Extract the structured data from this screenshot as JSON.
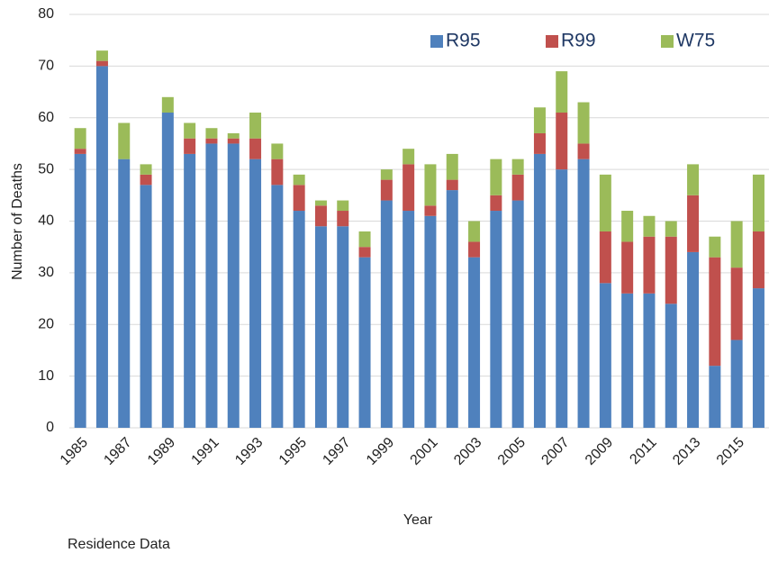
{
  "chart_data": {
    "type": "stacked_bar",
    "x_label": "Year",
    "y_label": "Number of Deaths",
    "caption": "Residence Data",
    "categories": [
      "1985",
      null,
      "1987",
      null,
      "1989",
      null,
      "1991",
      null,
      "1993",
      null,
      "1995",
      null,
      "1997",
      null,
      "1999",
      null,
      "2001",
      null,
      "2003",
      null,
      "2005",
      null,
      "2007",
      null,
      "2009",
      null,
      "2011",
      null,
      "2013",
      null,
      "2015",
      null
    ],
    "series": [
      {
        "name": "R95",
        "color": "#4f81bd",
        "values": [
          53,
          70,
          52,
          47,
          61,
          53,
          55,
          55,
          52,
          47,
          42,
          39,
          39,
          33,
          44,
          42,
          41,
          46,
          33,
          42,
          44,
          53,
          50,
          52,
          28,
          26,
          26,
          24,
          34,
          12,
          17,
          27
        ]
      },
      {
        "name": "R99",
        "color": "#c0504d",
        "values": [
          1,
          1,
          0,
          2,
          0,
          3,
          1,
          1,
          4,
          5,
          5,
          4,
          3,
          2,
          4,
          9,
          2,
          2,
          3,
          3,
          5,
          4,
          11,
          3,
          10,
          10,
          11,
          13,
          11,
          21,
          14,
          11
        ]
      },
      {
        "name": "W75",
        "color": "#9bbb59",
        "values": [
          4,
          2,
          7,
          2,
          3,
          3,
          2,
          1,
          5,
          3,
          2,
          1,
          2,
          3,
          2,
          3,
          8,
          5,
          4,
          7,
          3,
          5,
          8,
          8,
          11,
          6,
          4,
          3,
          6,
          4,
          9,
          11
        ]
      }
    ],
    "ylim": [
      0,
      80
    ],
    "yticks": [
      0,
      10,
      20,
      30,
      40,
      50,
      60,
      70,
      80
    ],
    "grid": true,
    "legend": "top-right"
  }
}
